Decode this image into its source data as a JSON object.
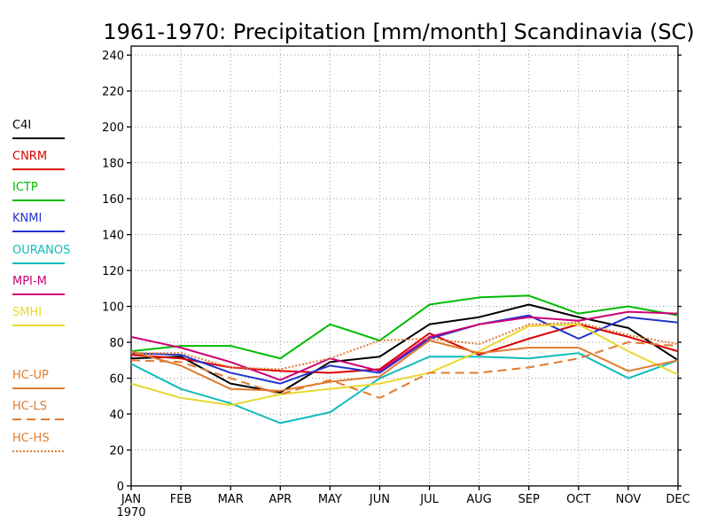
{
  "chart_data": {
    "type": "line",
    "title": "1961-1970: Precipitation [mm/month] Scandinavia (SC)",
    "categories": [
      "JAN",
      "FEB",
      "MAR",
      "APR",
      "MAY",
      "JUN",
      "JUL",
      "AUG",
      "SEP",
      "OCT",
      "NOV",
      "DEC"
    ],
    "x_year_label": "1970",
    "ylim": [
      0,
      245
    ],
    "yticks": [
      0,
      20,
      40,
      60,
      80,
      100,
      120,
      140,
      160,
      180,
      200,
      220,
      240
    ],
    "grid": true,
    "legend_position": "left",
    "series": [
      {
        "name": "C4I",
        "color": "#000000",
        "dash": "solid",
        "values": [
          71,
          72,
          57,
          52,
          69,
          72,
          90,
          94,
          101,
          94,
          88,
          70
        ]
      },
      {
        "name": "CNRM",
        "color": "#dd0000",
        "dash": "solid",
        "values": [
          73,
          71,
          66,
          64,
          63,
          65,
          85,
          73,
          82,
          90,
          83,
          75
        ]
      },
      {
        "name": "ICTP",
        "color": "#00bb00",
        "dash": "solid",
        "values": [
          75,
          78,
          78,
          71,
          90,
          81,
          101,
          105,
          106,
          96,
          100,
          95
        ]
      },
      {
        "name": "KNMI",
        "color": "#2233cc",
        "dash": "solid",
        "values": [
          74,
          73,
          63,
          57,
          67,
          63,
          82,
          90,
          95,
          82,
          94,
          91
        ]
      },
      {
        "name": "OURANOS",
        "color": "#11bbbb",
        "dash": "solid",
        "values": [
          68,
          54,
          46,
          35,
          41,
          60,
          72,
          72,
          71,
          74,
          60,
          70
        ]
      },
      {
        "name": "MPI-M",
        "color": "#cc0077",
        "dash": "solid",
        "values": [
          83,
          77,
          69,
          59,
          71,
          64,
          83,
          90,
          94,
          92,
          97,
          96
        ]
      },
      {
        "name": "SMHI",
        "color": "#e8d830",
        "dash": "solid",
        "values": [
          57,
          49,
          45,
          51,
          54,
          57,
          63,
          75,
          89,
          90,
          75,
          62
        ]
      },
      {
        "name": "HC-UP",
        "color": "#e07b30",
        "dash": "solid",
        "values": [
          75,
          67,
          54,
          53,
          58,
          61,
          81,
          74,
          77,
          77,
          64,
          70
        ]
      },
      {
        "name": "HC-LS",
        "color": "#e07b30",
        "dash": "dashed",
        "values": [
          70,
          69,
          60,
          51,
          59,
          49,
          63,
          63,
          66,
          71,
          80,
          78
        ]
      },
      {
        "name": "HC-HS",
        "color": "#e07b30",
        "dash": "dotted",
        "values": [
          74,
          74,
          66,
          65,
          71,
          81,
          82,
          79,
          90,
          91,
          84,
          79
        ]
      }
    ]
  }
}
